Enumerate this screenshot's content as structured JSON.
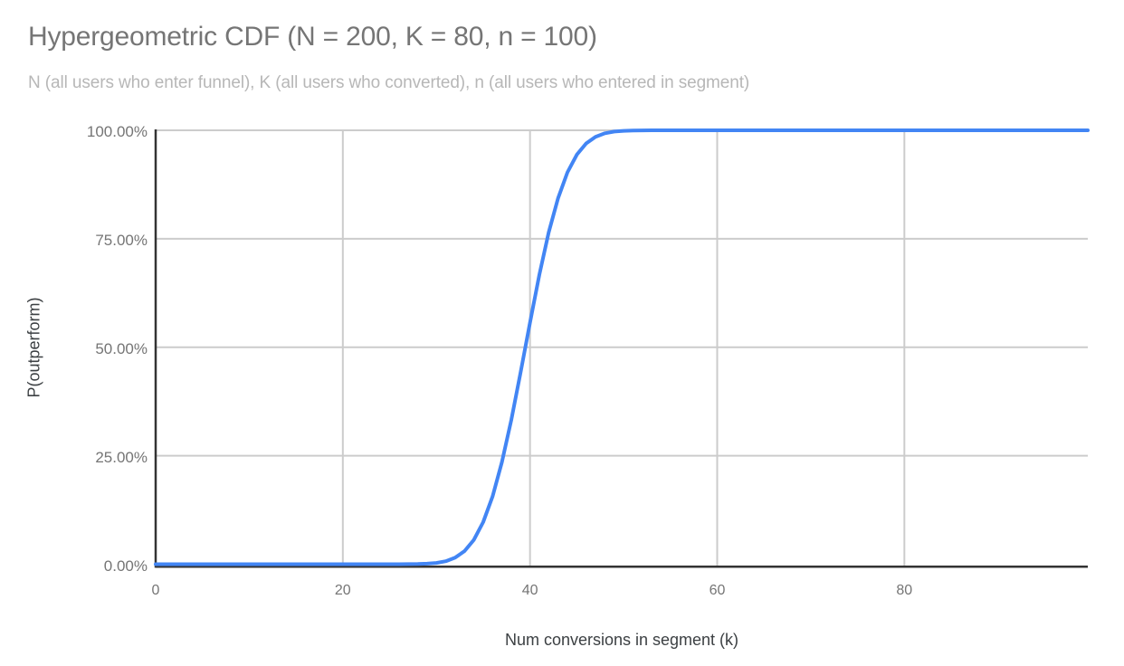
{
  "chart_data": {
    "type": "line",
    "title": "Hypergeometric CDF (N = 200, K = 80, n = 100)",
    "subtitle": "N (all users who enter funnel), K (all users who converted), n (all users who entered in segment)",
    "xlabel": "Num conversions in segment (k)",
    "ylabel": "P(outperform)",
    "params": {
      "N": 200,
      "K": 80,
      "n": 100
    },
    "xlim": [
      0,
      99.6
    ],
    "ylim": [
      0,
      1
    ],
    "x_tick_values": [
      0,
      20,
      40,
      60,
      80
    ],
    "x_tick_labels": [
      "0",
      "20",
      "40",
      "60",
      "80"
    ],
    "y_tick_values": [
      0,
      0.25,
      0.5,
      0.75,
      1
    ],
    "y_tick_labels": [
      "0.00%",
      "25.00%",
      "50.00%",
      "75.00%",
      "100.00%"
    ],
    "grid": true,
    "legend": "none",
    "series": [
      {
        "name": "P(outperform)",
        "color": "#4285f4",
        "x_start": 0,
        "x_step": 1,
        "y": [
          0,
          0,
          0,
          0,
          0,
          0,
          0,
          0,
          0,
          0,
          0,
          0,
          0,
          0,
          0,
          0,
          0,
          0,
          0,
          0,
          0,
          0,
          0,
          1e-06,
          4e-06,
          1.3e-05,
          4.4e-05,
          0.000142,
          0.000425,
          0.00117,
          0.00297,
          0.00695,
          0.01504,
          0.03014,
          0.05604,
          0.09689,
          0.15616,
          0.2353,
          0.33257,
          0.44265,
          0.55735,
          0.66743,
          0.7647,
          0.84384,
          0.90311,
          0.94396,
          0.96986,
          0.98496,
          0.99305,
          0.99703,
          0.99883,
          0.99957,
          0.99986,
          0.99996,
          0.99999,
          1,
          1,
          1,
          1,
          1,
          1,
          1,
          1,
          1,
          1,
          1,
          1,
          1,
          1,
          1,
          1,
          1,
          1,
          1,
          1,
          1,
          1,
          1,
          1,
          1,
          1,
          1,
          1,
          1,
          1,
          1,
          1,
          1,
          1,
          1,
          1,
          1,
          1,
          1,
          1,
          1,
          1,
          1,
          1,
          1
        ]
      }
    ],
    "colors": {
      "line": "#4285f4",
      "grid": "#cccccc",
      "axis": "#333333",
      "title_text": "#757575",
      "subtitle_text": "#b7b7b7",
      "tick_text": "#757575",
      "axis_title_text": "#3c4043",
      "background": "#ffffff"
    }
  }
}
